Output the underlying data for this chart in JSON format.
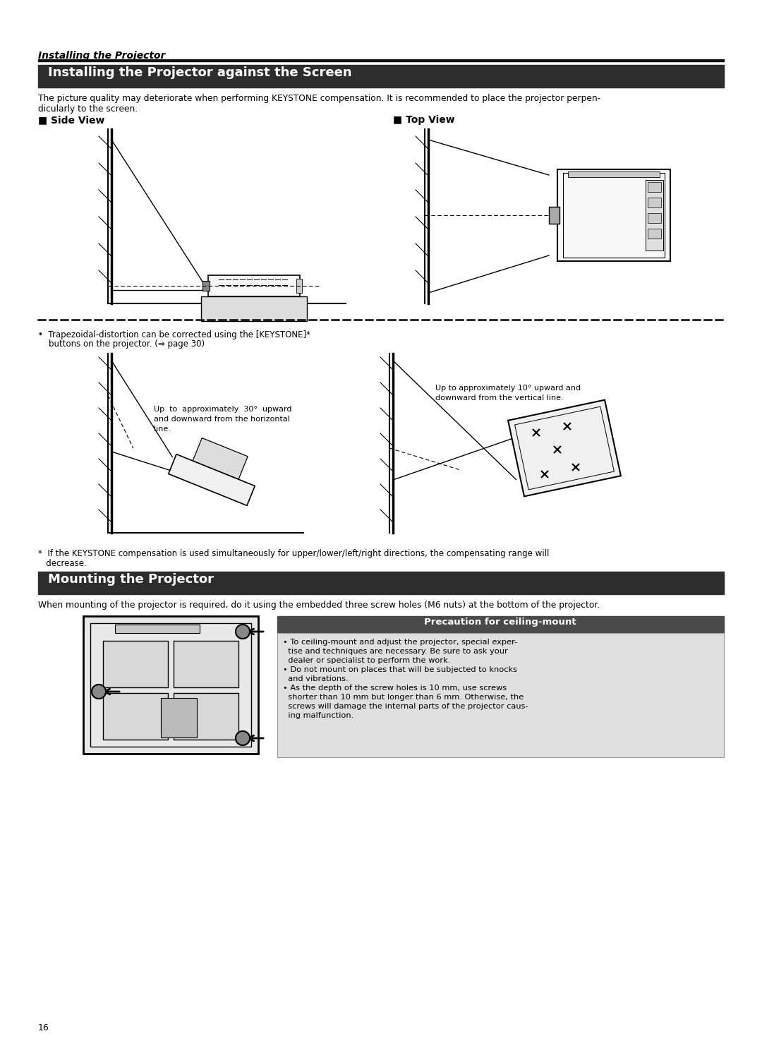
{
  "page_bg": "#ffffff",
  "page_number": "16",
  "header_italic": "Installing the Projector",
  "section1_title": "Installing the Projector against the Screen",
  "section1_title_color": "#ffffff",
  "section1_header_bg": "#2d2d2d",
  "section1_body_line1": "The picture quality may deteriorate when performing KEYSTONE compensation. It is recommended to place the projector perpen-",
  "section1_body_line2": "dicularly to the screen.",
  "side_view_label": "■ Side View",
  "top_view_label": "■ Top View",
  "bullet_line1": "•  Trapezoidal-distortion can be corrected using the [KEYSTONE]*",
  "bullet_line2": "    buttons on the projector. (⇒ page 30)",
  "annotation_side_30_line1": "Up  to  approximately  30°  upward",
  "annotation_side_30_line2": "and downward from the horizontal",
  "annotation_side_30_line3": "line.",
  "annotation_top_10_line1": "Up to approximately 10° upward and",
  "annotation_top_10_line2": "downward from the vertical line.",
  "footnote_line1": "*  If the KEYSTONE compensation is used simultaneously for upper/lower/left/right directions, the compensating range will",
  "footnote_line2": "   decrease.",
  "section2_title": "Mounting the Projector",
  "section2_title_color": "#ffffff",
  "section2_header_bg": "#2d2d2d",
  "section2_body_text": "When mounting of the projector is required, do it using the embedded three screw holes (M6 nuts) at the bottom of the projector.",
  "precaution_title": "Precaution for ceiling-mount",
  "precaution_title_bg": "#4a4a4a",
  "precaution_title_color": "#ffffff",
  "precaution_body_bg": "#e0e0e0",
  "precaution_b1_l1": "• To ceiling-mount and adjust the projector, special exper-",
  "precaution_b1_l2": "  tise and techniques are necessary. Be sure to ask your",
  "precaution_b1_l3": "  dealer or specialist to perform the work.",
  "precaution_b2_l1": "• Do not mount on places that will be subjected to knocks",
  "precaution_b2_l2": "  and vibrations.",
  "precaution_b3_l1": "• As the depth of the screw holes is 10 mm, use screws",
  "precaution_b3_l2": "  shorter than 10 mm but longer than 6 mm. Otherwise, the",
  "precaution_b3_l3": "  screws will damage the internal parts of the projector caus-",
  "precaution_b3_l4": "  ing malfunction."
}
